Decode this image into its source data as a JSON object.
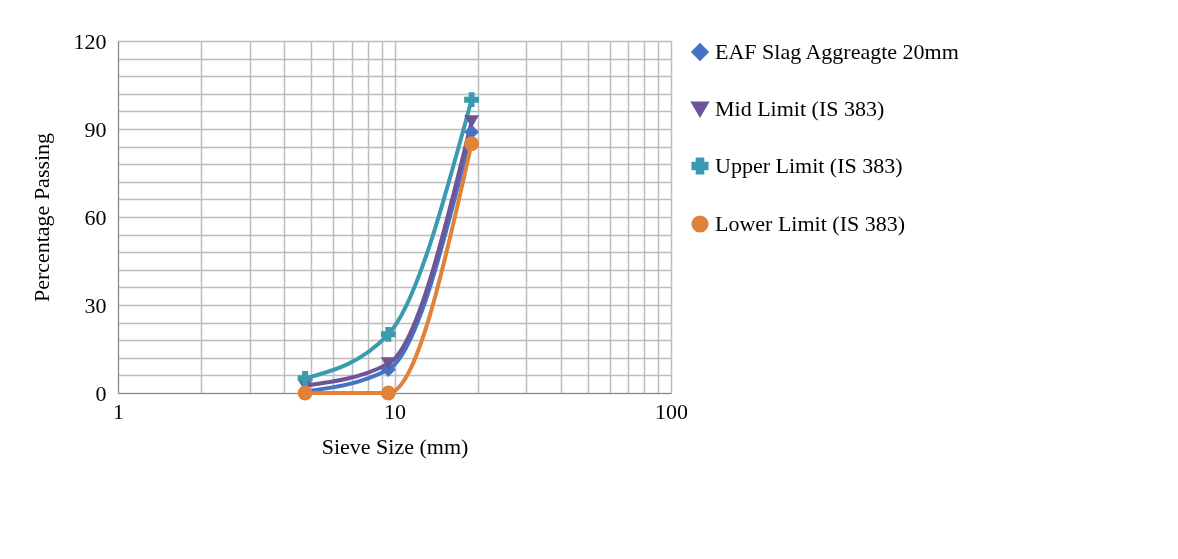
{
  "chart_data": {
    "type": "line",
    "xlabel": "Sieve Size (mm)",
    "ylabel": "Percentage Passing",
    "log": "x",
    "grid": true,
    "legend": "right",
    "line_style": "solid",
    "x": [
      4.75,
      9.5,
      19
    ],
    "series": [
      {
        "name": "EAF Slag Aggreagte 20mm",
        "color": "#4472c4",
        "marker": "diamond",
        "values": [
          0.5,
          8,
          89
        ]
      },
      {
        "name": "Mid Limit (IS 383)",
        "color": "#6f5597",
        "marker": "triangle",
        "values": [
          2.5,
          10,
          92.5
        ]
      },
      {
        "name": "Upper Limit (IS 383)",
        "color": "#3b9ab0",
        "marker": "cross",
        "values": [
          5,
          20,
          100
        ]
      },
      {
        "name": "Lower Limit (IS 383)",
        "color": "#e0823a",
        "marker": "circle",
        "values": [
          0,
          0,
          85
        ]
      }
    ],
    "xlim": [
      1,
      100
    ],
    "xticks": [
      1,
      {
        "value": 2,
        "label": null
      },
      {
        "value": 3,
        "label": null
      },
      {
        "value": 4,
        "label": null
      },
      {
        "value": 5,
        "label": null
      },
      {
        "value": 6,
        "label": null
      },
      {
        "value": 7,
        "label": null
      },
      {
        "value": 8,
        "label": null
      },
      {
        "value": 9,
        "label": null
      },
      10,
      {
        "value": 20,
        "label": null
      },
      {
        "value": 30,
        "label": null
      },
      {
        "value": 40,
        "label": null
      },
      {
        "value": 50,
        "label": null
      },
      {
        "value": 60,
        "label": null
      },
      {
        "value": 70,
        "label": null
      },
      {
        "value": 80,
        "label": null
      },
      {
        "value": 90,
        "label": null
      },
      100
    ],
    "ylim": [
      0,
      120
    ],
    "yticks": [
      0,
      {
        "value": 6,
        "label": null
      },
      {
        "value": 12,
        "label": null
      },
      {
        "value": 18,
        "label": null
      },
      {
        "value": 24,
        "label": null
      },
      30,
      {
        "value": 36,
        "label": null
      },
      {
        "value": 42,
        "label": null
      },
      {
        "value": 48,
        "label": null
      },
      {
        "value": 54,
        "label": null
      },
      60,
      {
        "value": 66,
        "label": null
      },
      {
        "value": 72,
        "label": null
      },
      {
        "value": 78,
        "label": null
      },
      {
        "value": 84,
        "label": null
      },
      90,
      {
        "value": 96,
        "label": null
      },
      {
        "value": 102,
        "label": null
      },
      {
        "value": 108,
        "label": null
      },
      {
        "value": 114,
        "label": null
      },
      120
    ]
  }
}
